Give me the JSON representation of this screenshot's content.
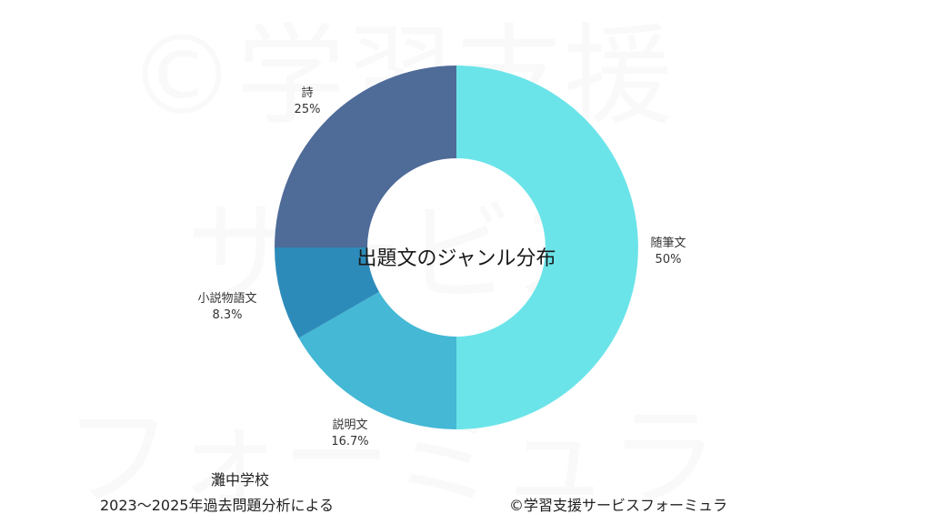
{
  "watermark": {
    "line1": "©学習支援",
    "line2": "サービス",
    "line3": "フォーミュラ"
  },
  "chart_data": {
    "type": "pie",
    "title": "出題文のジャンル分布",
    "slices": [
      {
        "label": "随筆文",
        "percent_label": "50%",
        "value": 50.0,
        "color": "#6BE4E9"
      },
      {
        "label": "説明文",
        "percent_label": "16.7%",
        "value": 16.7,
        "color": "#44B8D5"
      },
      {
        "label": "小説物語文",
        "percent_label": "8.3%",
        "value": 8.3,
        "color": "#2D8BBA"
      },
      {
        "label": "詩",
        "percent_label": "25%",
        "value": 25.0,
        "color": "#4F6B98"
      }
    ]
  },
  "footer": {
    "school": "灘中学校",
    "source": "2023〜2025年過去問題分析による",
    "credit": "©学習支援サービスフォーミュラ"
  }
}
